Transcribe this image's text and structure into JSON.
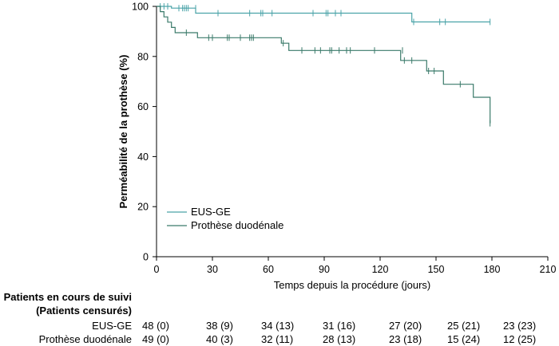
{
  "chart_data": {
    "type": "line",
    "step": true,
    "xlabel": "Temps depuis la procédure (jours)",
    "ylabel": "Perméabilité de la prothèse (%)",
    "xlim": [
      0,
      210
    ],
    "ylim": [
      0,
      100
    ],
    "xticks": [
      0,
      30,
      60,
      90,
      120,
      150,
      180,
      210
    ],
    "yticks": [
      0,
      20,
      40,
      60,
      80,
      100
    ],
    "grid": false,
    "legend_position": "bottom-left",
    "series": [
      {
        "name": "EUS-GE",
        "color": "#4aa3a8",
        "steps": [
          [
            0,
            100
          ],
          [
            8,
            99.3
          ],
          [
            21,
            97.3
          ],
          [
            135,
            97.3
          ],
          [
            137,
            93.8
          ],
          [
            179,
            93.8
          ]
        ],
        "censors": [
          [
            2,
            100
          ],
          [
            4,
            100
          ],
          [
            6,
            100
          ],
          [
            12,
            99.3
          ],
          [
            14,
            99.3
          ],
          [
            15,
            99.3
          ],
          [
            16,
            99.3
          ],
          [
            17,
            99.3
          ],
          [
            21,
            99.3
          ],
          [
            33,
            97.3
          ],
          [
            50,
            97.3
          ],
          [
            56,
            97.3
          ],
          [
            57,
            97.3
          ],
          [
            62,
            97.3
          ],
          [
            84,
            97.3
          ],
          [
            91,
            97.3
          ],
          [
            92,
            97.3
          ],
          [
            96,
            97.3
          ],
          [
            99,
            97.3
          ],
          [
            138,
            93.8
          ],
          [
            152,
            93.8
          ],
          [
            155,
            93.8
          ],
          [
            179,
            93.8
          ]
        ]
      },
      {
        "name": "Prothèse duodénale",
        "color": "#3a7a6a",
        "steps": [
          [
            0,
            100
          ],
          [
            2,
            97.9
          ],
          [
            4,
            95.8
          ],
          [
            6,
            93.7
          ],
          [
            8,
            91.6
          ],
          [
            10,
            89.5
          ],
          [
            22,
            87.5
          ],
          [
            67,
            85.3
          ],
          [
            71,
            82.4
          ],
          [
            131,
            78.4
          ],
          [
            145,
            74.2
          ],
          [
            154,
            68.9
          ],
          [
            170,
            63.7
          ],
          [
            179,
            53.3
          ]
        ],
        "censors": [
          [
            16,
            89.5
          ],
          [
            28,
            87.5
          ],
          [
            30,
            87.5
          ],
          [
            38,
            87.5
          ],
          [
            39,
            87.5
          ],
          [
            45,
            87.5
          ],
          [
            50,
            87.5
          ],
          [
            51,
            87.5
          ],
          [
            52,
            87.5
          ],
          [
            68,
            85.3
          ],
          [
            78,
            82.4
          ],
          [
            85,
            82.4
          ],
          [
            88,
            82.4
          ],
          [
            93,
            82.4
          ],
          [
            94,
            82.4
          ],
          [
            98,
            82.4
          ],
          [
            102,
            82.4
          ],
          [
            104,
            82.4
          ],
          [
            117,
            82.4
          ],
          [
            132,
            82.4
          ],
          [
            133,
            78.4
          ],
          [
            137,
            78.4
          ],
          [
            146,
            74.2
          ],
          [
            149,
            74.2
          ],
          [
            163,
            68.9
          ],
          [
            179,
            53.3
          ]
        ]
      }
    ],
    "risk_table": {
      "title_line1": "Patients en cours de suivi",
      "title_line2": "(Patients censurés)",
      "rows": [
        {
          "label": "EUS-GE",
          "values": [
            "48 (0)",
            "38 (9)",
            "34 (13)",
            "31 (16)",
            "27 (20)",
            "25 (21)",
            "23 (23)"
          ]
        },
        {
          "label": "Prothèse duodénale",
          "values": [
            "49 (0)",
            "40 (3)",
            "32 (11)",
            "28 (13)",
            "23 (18)",
            "15 (24)",
            "12 (25)"
          ]
        }
      ]
    }
  }
}
